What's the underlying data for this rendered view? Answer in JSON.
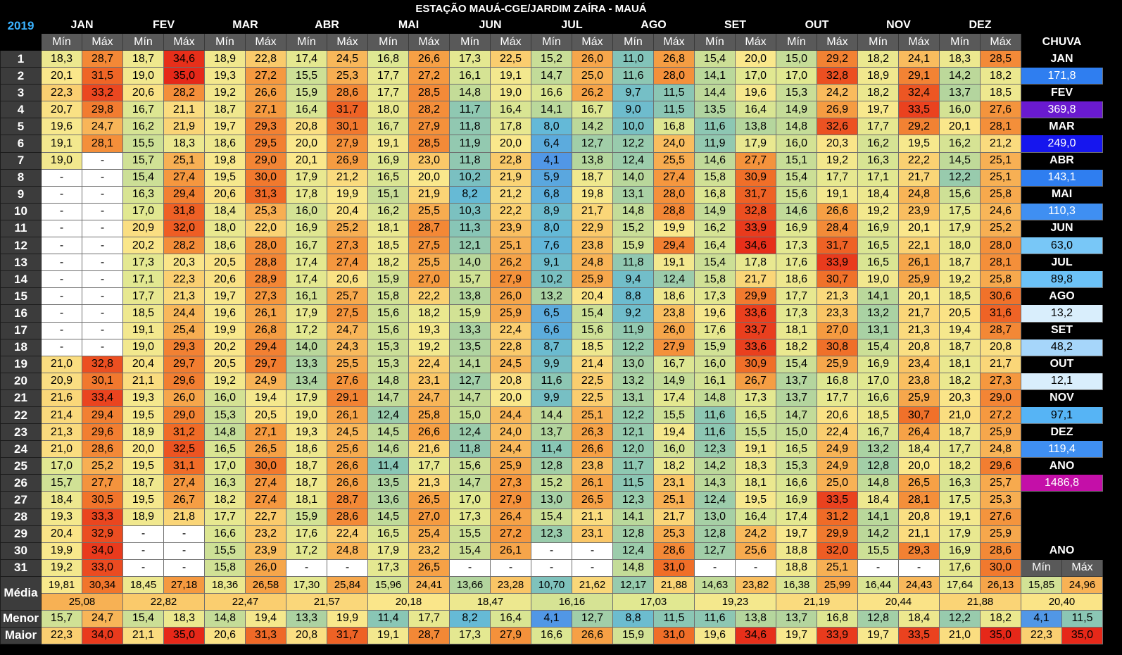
{
  "title": "ESTAÇÃO MAUÁ-CGE/JARDIM ZAÍRA - MAUÁ",
  "year": "2019",
  "sub_min": "Mín",
  "sub_max": "Máx",
  "months": [
    "JAN",
    "FEV",
    "MAR",
    "ABR",
    "MAI",
    "JUN",
    "JUL",
    "AGO",
    "SET",
    "OUT",
    "NOV",
    "DEZ"
  ],
  "rain_header": "CHUVA",
  "rain_months": [
    "JAN",
    "FEV",
    "MAR",
    "ABR",
    "MAI",
    "JUN",
    "JUL",
    "AGO",
    "SET",
    "OUT",
    "NOV",
    "DEZ",
    "ANO"
  ],
  "rain_values": [
    "171,8",
    "369,8",
    "249,0",
    "143,1",
    "110,3",
    "63,0",
    "89,8",
    "13,2",
    "48,2",
    "12,1",
    "97,1",
    "119,4",
    "1486,8"
  ],
  "ano_label": "ANO",
  "row_labels": {
    "media": "Média",
    "menor": "Menor",
    "maior": "Maior"
  },
  "days": [
    [
      "18,3",
      "28,7",
      "18,7",
      "34,6",
      "18,9",
      "22,8",
      "17,4",
      "24,5",
      "16,8",
      "26,6",
      "17,3",
      "22,5",
      "15,2",
      "26,0",
      "11,0",
      "26,8",
      "15,4",
      "20,0",
      "15,0",
      "29,2",
      "18,2",
      "24,1",
      "18,3",
      "28,5"
    ],
    [
      "20,1",
      "31,5",
      "19,0",
      "35,0",
      "19,3",
      "27,2",
      "15,5",
      "25,3",
      "17,7",
      "27,2",
      "16,1",
      "19,1",
      "14,7",
      "25,0",
      "11,6",
      "28,0",
      "14,1",
      "17,0",
      "17,0",
      "32,8",
      "18,9",
      "29,1",
      "14,2",
      "18,2"
    ],
    [
      "22,3",
      "33,2",
      "20,6",
      "28,2",
      "19,2",
      "26,6",
      "15,9",
      "28,6",
      "17,7",
      "28,5",
      "14,8",
      "19,0",
      "16,6",
      "26,2",
      "9,7",
      "11,5",
      "14,4",
      "19,6",
      "15,3",
      "24,2",
      "18,2",
      "32,4",
      "13,7",
      "18,5"
    ],
    [
      "20,7",
      "29,8",
      "16,7",
      "21,1",
      "18,7",
      "27,1",
      "16,4",
      "31,7",
      "18,0",
      "28,2",
      "11,7",
      "16,4",
      "14,1",
      "16,7",
      "9,0",
      "11,5",
      "13,5",
      "16,4",
      "14,9",
      "26,9",
      "19,7",
      "33,5",
      "16,0",
      "27,6"
    ],
    [
      "19,6",
      "24,7",
      "16,2",
      "21,9",
      "19,7",
      "29,3",
      "20,8",
      "30,1",
      "16,7",
      "27,9",
      "11,8",
      "17,8",
      "8,0",
      "14,2",
      "10,0",
      "16,8",
      "11,6",
      "13,8",
      "14,8",
      "32,6",
      "17,7",
      "29,2",
      "20,1",
      "28,1"
    ],
    [
      "19,1",
      "28,1",
      "15,5",
      "18,3",
      "18,6",
      "29,5",
      "20,0",
      "27,9",
      "19,1",
      "28,5",
      "11,9",
      "20,0",
      "6,4",
      "12,7",
      "12,2",
      "24,0",
      "11,9",
      "17,9",
      "16,0",
      "20,3",
      "16,2",
      "19,5",
      "16,2",
      "21,2"
    ],
    [
      "19,0",
      "-",
      "15,7",
      "25,1",
      "19,8",
      "29,0",
      "20,1",
      "26,9",
      "16,9",
      "23,0",
      "11,8",
      "22,8",
      "4,1",
      "13,8",
      "12,4",
      "25,5",
      "14,6",
      "27,7",
      "15,1",
      "19,2",
      "16,3",
      "22,2",
      "14,5",
      "25,1"
    ],
    [
      "-",
      "-",
      "15,4",
      "27,4",
      "19,5",
      "30,0",
      "17,9",
      "21,2",
      "16,5",
      "20,0",
      "10,2",
      "21,9",
      "5,9",
      "18,7",
      "14,0",
      "27,4",
      "15,8",
      "30,9",
      "15,4",
      "17,7",
      "17,1",
      "21,7",
      "12,2",
      "25,1"
    ],
    [
      "-",
      "-",
      "16,3",
      "29,4",
      "20,6",
      "31,3",
      "17,8",
      "19,9",
      "15,1",
      "21,9",
      "8,2",
      "21,2",
      "6,8",
      "19,8",
      "13,1",
      "28,0",
      "16,8",
      "31,7",
      "15,6",
      "19,1",
      "18,4",
      "24,8",
      "15,6",
      "25,8"
    ],
    [
      "-",
      "-",
      "17,0",
      "31,8",
      "18,4",
      "25,3",
      "16,0",
      "20,4",
      "16,2",
      "25,5",
      "10,3",
      "22,2",
      "8,9",
      "21,7",
      "14,8",
      "28,8",
      "14,9",
      "32,8",
      "14,6",
      "26,6",
      "19,2",
      "23,9",
      "17,5",
      "24,6"
    ],
    [
      "-",
      "-",
      "20,9",
      "32,0",
      "18,0",
      "22,0",
      "16,9",
      "25,2",
      "18,1",
      "28,7",
      "11,3",
      "23,9",
      "8,0",
      "22,9",
      "15,2",
      "19,9",
      "16,2",
      "33,9",
      "16,9",
      "28,4",
      "16,9",
      "20,1",
      "17,9",
      "25,2"
    ],
    [
      "-",
      "-",
      "20,2",
      "28,2",
      "18,6",
      "28,0",
      "16,7",
      "27,3",
      "18,5",
      "27,5",
      "12,1",
      "25,1",
      "7,6",
      "23,8",
      "15,9",
      "29,4",
      "16,4",
      "34,6",
      "17,3",
      "31,7",
      "16,5",
      "22,1",
      "18,0",
      "28,0"
    ],
    [
      "-",
      "-",
      "17,3",
      "20,3",
      "20,5",
      "28,8",
      "17,4",
      "27,4",
      "18,2",
      "25,5",
      "14,0",
      "26,2",
      "9,1",
      "24,8",
      "11,8",
      "19,1",
      "15,4",
      "17,8",
      "17,6",
      "33,9",
      "16,5",
      "26,1",
      "18,7",
      "28,1"
    ],
    [
      "-",
      "-",
      "17,1",
      "22,3",
      "20,6",
      "28,9",
      "17,4",
      "20,6",
      "15,9",
      "27,0",
      "15,7",
      "27,9",
      "10,2",
      "25,9",
      "9,4",
      "12,4",
      "15,8",
      "21,7",
      "18,6",
      "30,7",
      "19,0",
      "25,9",
      "19,2",
      "25,8"
    ],
    [
      "-",
      "-",
      "17,7",
      "21,3",
      "19,7",
      "27,3",
      "16,1",
      "25,7",
      "15,8",
      "22,2",
      "13,8",
      "26,0",
      "13,2",
      "20,4",
      "8,8",
      "18,6",
      "17,3",
      "29,9",
      "17,7",
      "21,3",
      "14,1",
      "20,1",
      "18,5",
      "30,6"
    ],
    [
      "-",
      "-",
      "18,5",
      "24,4",
      "19,6",
      "26,1",
      "17,9",
      "27,5",
      "15,6",
      "18,2",
      "15,9",
      "25,9",
      "6,5",
      "15,4",
      "9,2",
      "23,8",
      "19,6",
      "33,6",
      "17,3",
      "23,3",
      "13,2",
      "21,7",
      "20,5",
      "31,6"
    ],
    [
      "-",
      "-",
      "19,1",
      "25,4",
      "19,9",
      "26,8",
      "17,2",
      "24,7",
      "15,6",
      "19,3",
      "13,3",
      "22,4",
      "6,6",
      "15,6",
      "11,9",
      "26,0",
      "17,6",
      "33,7",
      "18,1",
      "27,0",
      "13,1",
      "21,3",
      "19,4",
      "28,7"
    ],
    [
      "-",
      "-",
      "19,0",
      "29,3",
      "20,2",
      "29,4",
      "14,0",
      "24,3",
      "15,3",
      "19,2",
      "13,5",
      "22,8",
      "8,7",
      "18,5",
      "12,2",
      "27,9",
      "15,9",
      "33,6",
      "18,2",
      "30,8",
      "15,4",
      "20,8",
      "18,7",
      "20,8"
    ],
    [
      "21,0",
      "32,8",
      "20,4",
      "29,7",
      "20,5",
      "29,7",
      "13,3",
      "25,5",
      "15,3",
      "22,4",
      "14,1",
      "24,5",
      "9,9",
      "21,4",
      "13,0",
      "16,7",
      "16,0",
      "30,9",
      "15,4",
      "25,9",
      "16,9",
      "23,4",
      "18,1",
      "21,7"
    ],
    [
      "20,9",
      "30,1",
      "21,1",
      "29,6",
      "19,2",
      "24,9",
      "13,4",
      "27,6",
      "14,8",
      "23,1",
      "12,7",
      "20,8",
      "11,6",
      "22,5",
      "13,2",
      "14,9",
      "16,1",
      "26,7",
      "13,7",
      "16,8",
      "17,0",
      "23,8",
      "18,2",
      "27,3"
    ],
    [
      "21,6",
      "33,4",
      "19,3",
      "26,0",
      "16,0",
      "19,4",
      "17,9",
      "29,1",
      "14,7",
      "24,7",
      "14,7",
      "20,0",
      "9,9",
      "22,5",
      "13,1",
      "17,4",
      "14,8",
      "17,3",
      "13,7",
      "17,7",
      "16,6",
      "25,9",
      "20,3",
      "29,0"
    ],
    [
      "21,4",
      "29,4",
      "19,5",
      "29,0",
      "15,3",
      "20,5",
      "19,0",
      "26,1",
      "12,4",
      "25,8",
      "15,0",
      "24,4",
      "14,4",
      "25,1",
      "12,2",
      "15,5",
      "11,6",
      "16,5",
      "14,7",
      "20,6",
      "18,5",
      "30,7",
      "21,0",
      "27,2"
    ],
    [
      "21,3",
      "29,6",
      "18,9",
      "31,2",
      "14,8",
      "27,1",
      "19,3",
      "24,5",
      "14,5",
      "26,6",
      "12,4",
      "24,0",
      "13,7",
      "26,3",
      "12,1",
      "19,4",
      "11,6",
      "15,5",
      "15,0",
      "22,4",
      "16,7",
      "26,4",
      "18,7",
      "25,9"
    ],
    [
      "21,0",
      "28,6",
      "20,0",
      "32,5",
      "16,5",
      "26,5",
      "18,6",
      "25,6",
      "14,6",
      "21,6",
      "11,8",
      "24,4",
      "11,4",
      "26,6",
      "12,0",
      "16,0",
      "12,3",
      "19,1",
      "16,5",
      "24,9",
      "13,2",
      "18,4",
      "17,7",
      "24,8"
    ],
    [
      "17,0",
      "25,2",
      "19,5",
      "31,1",
      "17,0",
      "30,0",
      "18,7",
      "26,6",
      "11,4",
      "17,7",
      "15,6",
      "25,9",
      "12,8",
      "23,8",
      "11,7",
      "18,2",
      "14,2",
      "18,3",
      "15,3",
      "24,9",
      "12,8",
      "20,0",
      "18,2",
      "29,6"
    ],
    [
      "15,7",
      "27,7",
      "18,7",
      "27,4",
      "16,3",
      "27,4",
      "18,7",
      "26,6",
      "13,5",
      "21,3",
      "14,7",
      "27,3",
      "15,2",
      "26,1",
      "11,5",
      "23,1",
      "14,3",
      "18,1",
      "16,6",
      "25,0",
      "14,8",
      "26,5",
      "16,3",
      "25,7"
    ],
    [
      "18,4",
      "30,5",
      "19,5",
      "26,7",
      "18,2",
      "27,4",
      "18,1",
      "28,7",
      "13,6",
      "26,5",
      "17,0",
      "27,9",
      "13,0",
      "26,5",
      "12,3",
      "25,1",
      "12,4",
      "19,5",
      "16,9",
      "33,5",
      "18,4",
      "28,1",
      "17,5",
      "25,3"
    ],
    [
      "19,3",
      "33,3",
      "18,9",
      "21,8",
      "17,7",
      "22,7",
      "15,9",
      "28,6",
      "14,5",
      "27,0",
      "17,3",
      "26,4",
      "15,4",
      "21,1",
      "14,1",
      "21,7",
      "13,0",
      "16,4",
      "17,4",
      "31,2",
      "14,1",
      "20,8",
      "19,1",
      "27,6"
    ],
    [
      "20,4",
      "32,9",
      "-",
      "-",
      "16,6",
      "23,2",
      "17,6",
      "22,4",
      "16,5",
      "25,4",
      "15,5",
      "27,2",
      "12,3",
      "23,1",
      "12,8",
      "25,3",
      "12,8",
      "24,2",
      "19,7",
      "29,9",
      "14,2",
      "21,1",
      "17,9",
      "25,9"
    ],
    [
      "19,9",
      "34,0",
      "-",
      "-",
      "15,5",
      "23,9",
      "17,2",
      "24,8",
      "17,9",
      "23,2",
      "15,4",
      "26,1",
      "-",
      "-",
      "12,4",
      "28,6",
      "12,7",
      "25,6",
      "18,8",
      "32,0",
      "15,5",
      "29,3",
      "16,9",
      "28,6"
    ],
    [
      "19,2",
      "33,0",
      "-",
      "-",
      "15,8",
      "26,0",
      "-",
      "-",
      "17,3",
      "26,5",
      "-",
      "-",
      "-",
      "-",
      "14,8",
      "31,0",
      "-",
      "-",
      "18,8",
      "25,1",
      "-",
      "-",
      "17,6",
      "30,0"
    ]
  ],
  "media": [
    "19,81",
    "30,34",
    "18,45",
    "27,18",
    "18,36",
    "26,58",
    "17,30",
    "25,84",
    "15,96",
    "24,41",
    "13,66",
    "23,28",
    "10,70",
    "21,62",
    "12,17",
    "21,88",
    "14,63",
    "23,82",
    "16,38",
    "25,99",
    "16,44",
    "24,43",
    "17,64",
    "26,13"
  ],
  "media_month": [
    "25,08",
    "22,82",
    "22,47",
    "21,57",
    "20,18",
    "18,47",
    "16,16",
    "17,03",
    "19,23",
    "21,19",
    "20,44",
    "21,88"
  ],
  "menor": [
    "15,7",
    "24,7",
    "15,4",
    "18,3",
    "14,8",
    "19,4",
    "13,3",
    "19,9",
    "11,4",
    "17,7",
    "8,2",
    "16,4",
    "4,1",
    "12,7",
    "8,8",
    "11,5",
    "11,6",
    "13,8",
    "13,7",
    "16,8",
    "12,8",
    "18,4",
    "12,2",
    "18,2"
  ],
  "maior": [
    "22,3",
    "34,0",
    "21,1",
    "35,0",
    "20,6",
    "31,3",
    "20,8",
    "31,7",
    "19,1",
    "28,7",
    "17,3",
    "27,9",
    "16,6",
    "26,6",
    "15,9",
    "31,0",
    "19,6",
    "34,6",
    "19,7",
    "33,9",
    "19,7",
    "33,5",
    "21,0",
    "35,0"
  ],
  "ano": {
    "media_min": "15,85",
    "media_max": "24,96",
    "media_avg": "20,40",
    "menor_min": "4,1",
    "menor_max": "11,5",
    "maior_min": "22,3",
    "maior_max": "35,0"
  }
}
